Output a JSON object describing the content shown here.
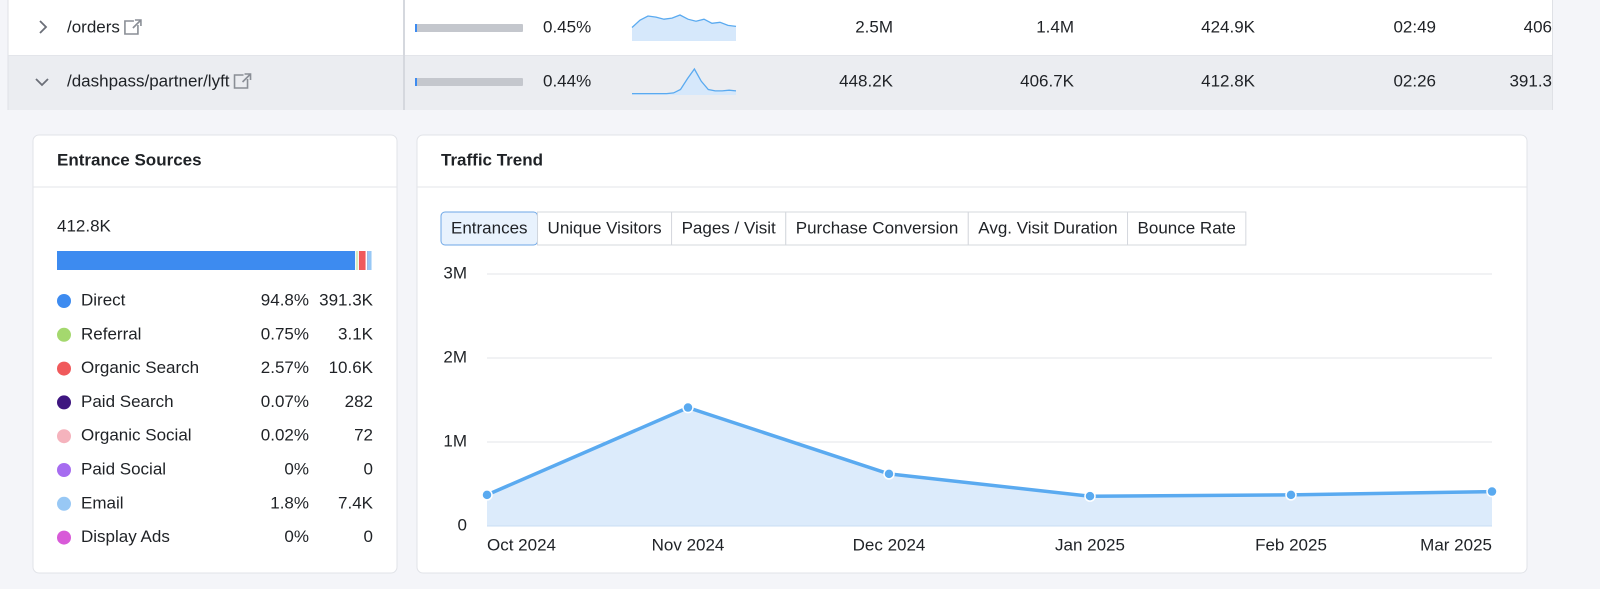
{
  "table": {
    "rows": [
      {
        "path": "/orders",
        "share": "0.45%",
        "sparkline": [
          13,
          20,
          24,
          23,
          21,
          22,
          25,
          21,
          19,
          21,
          17,
          18,
          15,
          14
        ],
        "cells": [
          "2.5M",
          "1.4M",
          "424.9K",
          "02:49",
          "406"
        ]
      },
      {
        "path": "/dashpass/partner/lyft",
        "share": "0.44%",
        "sparkline": [
          1,
          1,
          1,
          1,
          1,
          1,
          1.5,
          4,
          12,
          19,
          10,
          4,
          3,
          3,
          3.5,
          3
        ],
        "cells": [
          "448.2K",
          "406.7K",
          "412.8K",
          "02:26",
          "391.3"
        ]
      }
    ]
  },
  "entrance_sources": {
    "title": "Entrance Sources",
    "total": "412.8K",
    "sources": [
      {
        "name": "Direct",
        "color": "#3d8bf0",
        "share": 94.8,
        "share_label": "94.8%",
        "count": "391.3K"
      },
      {
        "name": "Referral",
        "color": "#a4d86e",
        "share": 0.75,
        "share_label": "0.75%",
        "count": "3.1K"
      },
      {
        "name": "Organic Search",
        "color": "#f0595b",
        "share": 2.57,
        "share_label": "2.57%",
        "count": "10.6K"
      },
      {
        "name": "Paid Search",
        "color": "#3e1680",
        "share": 0.07,
        "share_label": "0.07%",
        "count": "282"
      },
      {
        "name": "Organic Social",
        "color": "#f5b3bd",
        "share": 0.02,
        "share_label": "0.02%",
        "count": "72"
      },
      {
        "name": "Paid Social",
        "color": "#a66cf0",
        "share": 0,
        "share_label": "0%",
        "count": "0"
      },
      {
        "name": "Email",
        "color": "#98c8f5",
        "share": 1.8,
        "share_label": "1.8%",
        "count": "7.4K"
      },
      {
        "name": "Display Ads",
        "color": "#d85ad8",
        "share": 0,
        "share_label": "0%",
        "count": "0"
      }
    ]
  },
  "traffic_trend": {
    "title": "Traffic Trend",
    "tabs": [
      "Entrances",
      "Unique Visitors",
      "Pages / Visit",
      "Purchase Conversion",
      "Avg. Visit Duration",
      "Bounce Rate"
    ],
    "active_tab": 0,
    "chart_data": {
      "type": "area",
      "color": "#5aaaf0",
      "categories": [
        "Oct 2024",
        "Nov 2024",
        "Dec 2024",
        "Jan 2025",
        "Feb 2025",
        "Mar 2025"
      ],
      "values": [
        370000,
        1410000,
        620000,
        355000,
        370000,
        410000
      ],
      "ylim": [
        0,
        3000000
      ],
      "yticks": [
        0,
        {
          "value": 1000000,
          "label": "1M"
        },
        {
          "value": 2000000,
          "label": "2M"
        },
        {
          "value": 3000000,
          "label": "3M"
        }
      ],
      "grid": true
    }
  }
}
